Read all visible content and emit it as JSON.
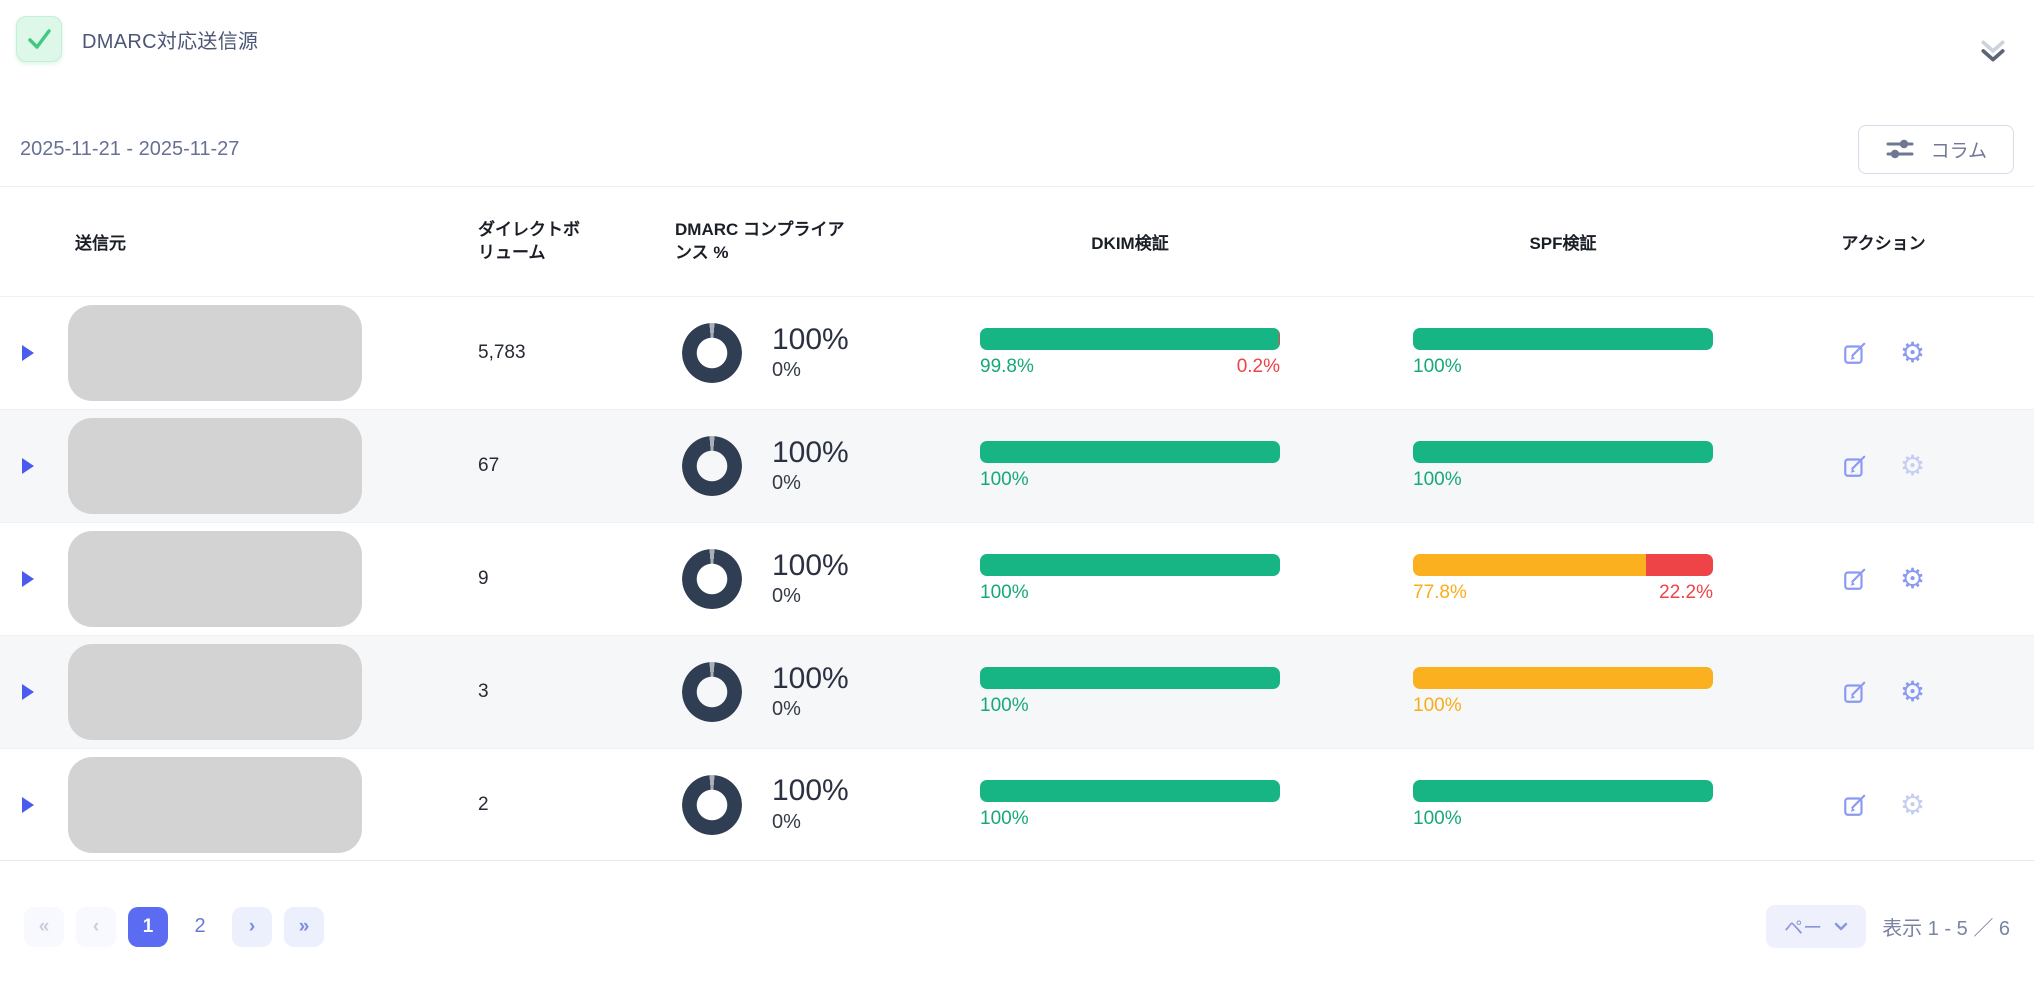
{
  "panel": {
    "title": "DMARC対応送信源"
  },
  "toolbar": {
    "date_range": "2025-11-21 - 2025-11-27",
    "columns_button_label": "コラム"
  },
  "table": {
    "headers": {
      "source": "送信元",
      "volume": "ダイレクトボリューム",
      "compliance": "DMARC コンプライアンス %",
      "dkim": "DKIM検証",
      "spf": "SPF検証",
      "actions": "アクション"
    },
    "rows": [
      {
        "volume": "5,783",
        "compliance": {
          "main": "100%",
          "sub": "0%"
        },
        "dkim": {
          "segments": [
            {
              "pct": 99.8,
              "color": "#17b584"
            },
            {
              "pct": 0.2,
              "color": "#ee4347"
            }
          ],
          "left": {
            "text": "99.8%",
            "color": "#16a878"
          },
          "right": {
            "text": "0.2%",
            "color": "#ee4347"
          }
        },
        "spf": {
          "segments": [
            {
              "pct": 100,
              "color": "#17b584"
            }
          ],
          "left": {
            "text": "100%",
            "color": "#16a878"
          }
        }
      },
      {
        "volume": "67",
        "compliance": {
          "main": "100%",
          "sub": "0%"
        },
        "dkim": {
          "segments": [
            {
              "pct": 100,
              "color": "#17b584"
            }
          ],
          "left": {
            "text": "100%",
            "color": "#16a878"
          }
        },
        "spf": {
          "segments": [
            {
              "pct": 100,
              "color": "#17b584"
            }
          ],
          "left": {
            "text": "100%",
            "color": "#16a878"
          }
        }
      },
      {
        "volume": "9",
        "compliance": {
          "main": "100%",
          "sub": "0%"
        },
        "dkim": {
          "segments": [
            {
              "pct": 100,
              "color": "#17b584"
            }
          ],
          "left": {
            "text": "100%",
            "color": "#16a878"
          }
        },
        "spf": {
          "segments": [
            {
              "pct": 77.8,
              "color": "#fbb11f"
            },
            {
              "pct": 22.2,
              "color": "#ee4347"
            }
          ],
          "left": {
            "text": "77.8%",
            "color": "#f9ad19"
          },
          "right": {
            "text": "22.2%",
            "color": "#ee4347"
          }
        }
      },
      {
        "volume": "3",
        "compliance": {
          "main": "100%",
          "sub": "0%"
        },
        "dkim": {
          "segments": [
            {
              "pct": 100,
              "color": "#17b584"
            }
          ],
          "left": {
            "text": "100%",
            "color": "#16a878"
          }
        },
        "spf": {
          "segments": [
            {
              "pct": 100,
              "color": "#fbb11f"
            }
          ],
          "left": {
            "text": "100%",
            "color": "#f9ad19"
          }
        }
      },
      {
        "volume": "2",
        "compliance": {
          "main": "100%",
          "sub": "0%"
        },
        "dkim": {
          "segments": [
            {
              "pct": 100,
              "color": "#17b584"
            }
          ],
          "left": {
            "text": "100%",
            "color": "#16a878"
          }
        },
        "spf": {
          "segments": [
            {
              "pct": 100,
              "color": "#17b584"
            }
          ],
          "left": {
            "text": "100%",
            "color": "#16a878"
          }
        }
      }
    ]
  },
  "pagination": {
    "first": "«",
    "prev": "‹",
    "page1": "1",
    "page2": "2",
    "next": "›",
    "last": "»",
    "page_size_label": "ペー",
    "range_label": "表示 1 - 5 ／ 6"
  },
  "icons": {
    "gear": "⚙"
  },
  "colors": {
    "accent": "#5b6cf2",
    "green": "#17b584",
    "yellow": "#fbb11f",
    "red": "#ee4347",
    "donut": "#2f3e52"
  }
}
